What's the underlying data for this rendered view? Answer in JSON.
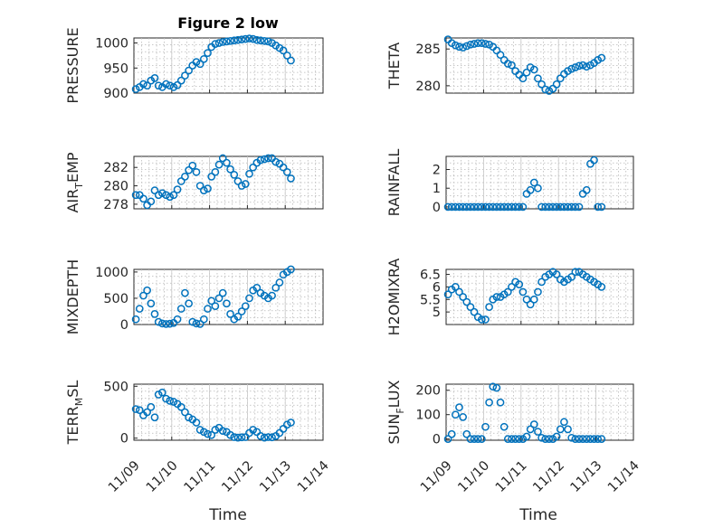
{
  "figure": {
    "title": "Figure 2 low",
    "time_ticks": [
      "11/09",
      "11/10",
      "11/11",
      "11/12",
      "11/13",
      "11/14"
    ],
    "xlabel": "Time",
    "marker_color": "#0072BD"
  },
  "chart_data": [
    {
      "type": "scatter",
      "ylabel": "PRESSURE",
      "ylim": [
        900,
        1010
      ],
      "yticks": [
        900,
        950,
        1000
      ],
      "x": [
        0.05,
        0.15,
        0.25,
        0.35,
        0.45,
        0.55,
        0.65,
        0.75,
        0.85,
        0.95,
        1.05,
        1.15,
        1.25,
        1.35,
        1.45,
        1.55,
        1.65,
        1.75,
        1.85,
        1.95,
        2.05,
        2.15,
        2.25,
        2.35,
        2.45,
        2.55,
        2.65,
        2.75,
        2.85,
        2.95,
        3.05,
        3.15,
        3.25,
        3.35,
        3.45,
        3.55,
        3.65,
        3.75,
        3.85,
        3.95,
        4.05,
        4.15
      ],
      "values": [
        908,
        912,
        918,
        915,
        925,
        930,
        915,
        912,
        918,
        915,
        912,
        916,
        925,
        935,
        945,
        955,
        962,
        958,
        968,
        980,
        992,
        998,
        1000,
        1002,
        1003,
        1004,
        1005,
        1006,
        1007,
        1008,
        1009,
        1008,
        1006,
        1005,
        1004,
        1003,
        1000,
        995,
        990,
        985,
        975,
        965
      ]
    },
    {
      "type": "scatter",
      "ylabel": "THETA",
      "ylim": [
        279,
        286.5
      ],
      "yticks": [
        280,
        285
      ],
      "x": [
        0.05,
        0.15,
        0.25,
        0.35,
        0.45,
        0.55,
        0.65,
        0.75,
        0.85,
        0.95,
        1.05,
        1.15,
        1.25,
        1.35,
        1.45,
        1.55,
        1.65,
        1.75,
        1.85,
        1.95,
        2.05,
        2.15,
        2.25,
        2.35,
        2.45,
        2.55,
        2.65,
        2.75,
        2.85,
        2.95,
        3.05,
        3.15,
        3.25,
        3.35,
        3.45,
        3.55,
        3.65,
        3.75,
        3.85,
        3.95,
        4.05,
        4.15
      ],
      "values": [
        286.3,
        285.8,
        285.5,
        285.3,
        285.2,
        285.4,
        285.6,
        285.7,
        285.8,
        285.8,
        285.7,
        285.6,
        285.3,
        284.8,
        284.2,
        283.5,
        283,
        282.8,
        282,
        281.5,
        281,
        281.8,
        282.5,
        282.2,
        281,
        280.2,
        279.5,
        279.3,
        279.6,
        280.2,
        281,
        281.6,
        282,
        282.3,
        282.5,
        282.7,
        282.8,
        282.6,
        282.8,
        283.1,
        283.5,
        283.8
      ]
    },
    {
      "type": "scatter",
      "ylabel": "AIR",
      "ylabel_sub": "T",
      "ylabel_tail": "EMP",
      "ylim": [
        277.5,
        283.2
      ],
      "yticks": [
        278,
        280,
        282
      ],
      "x": [
        0.05,
        0.15,
        0.25,
        0.35,
        0.45,
        0.55,
        0.65,
        0.75,
        0.85,
        0.95,
        1.05,
        1.15,
        1.25,
        1.35,
        1.45,
        1.55,
        1.65,
        1.75,
        1.85,
        1.95,
        2.05,
        2.15,
        2.25,
        2.35,
        2.45,
        2.55,
        2.65,
        2.75,
        2.85,
        2.95,
        3.05,
        3.15,
        3.25,
        3.35,
        3.45,
        3.55,
        3.65,
        3.75,
        3.85,
        3.95,
        4.05,
        4.15
      ],
      "values": [
        279,
        279,
        278.6,
        277.9,
        278.3,
        279.5,
        279,
        279.2,
        279,
        278.8,
        279,
        279.6,
        280.5,
        281,
        281.7,
        282.2,
        281.5,
        280,
        279.5,
        279.7,
        281,
        281.5,
        282.3,
        283,
        282.5,
        281.8,
        281.2,
        280.5,
        280,
        280.2,
        281.3,
        282,
        282.5,
        282.8,
        282.9,
        283,
        283,
        282.6,
        282.4,
        282,
        281.5,
        280.8
      ]
    },
    {
      "type": "scatter",
      "ylabel": "RAINFALL",
      "ylim": [
        -0.1,
        2.7
      ],
      "yticks": [
        0,
        1,
        2
      ],
      "x": [
        0.05,
        0.15,
        0.25,
        0.35,
        0.45,
        0.55,
        0.65,
        0.75,
        0.85,
        0.95,
        1.05,
        1.15,
        1.25,
        1.35,
        1.45,
        1.55,
        1.65,
        1.75,
        1.85,
        1.95,
        2.05,
        2.15,
        2.25,
        2.35,
        2.45,
        2.55,
        2.65,
        2.75,
        2.85,
        2.95,
        3.05,
        3.15,
        3.25,
        3.35,
        3.45,
        3.55,
        3.65,
        3.75,
        3.85,
        3.95,
        4.05,
        4.15
      ],
      "values": [
        0,
        0,
        0,
        0,
        0,
        0,
        0,
        0,
        0,
        0,
        0,
        0,
        0,
        0,
        0,
        0,
        0,
        0,
        0,
        0,
        0,
        0.7,
        0.9,
        1.3,
        1.0,
        0,
        0,
        0,
        0,
        0,
        0,
        0,
        0,
        0,
        0,
        0,
        0.7,
        0.9,
        2.3,
        2.5,
        0,
        0
      ]
    },
    {
      "type": "scatter",
      "ylabel": "MIXDEPTH",
      "ylim": [
        0,
        1050
      ],
      "yticks": [
        0,
        500,
        1000
      ],
      "x": [
        0.05,
        0.15,
        0.25,
        0.35,
        0.45,
        0.55,
        0.65,
        0.75,
        0.85,
        0.95,
        1.05,
        1.15,
        1.25,
        1.35,
        1.45,
        1.55,
        1.65,
        1.75,
        1.85,
        1.95,
        2.05,
        2.15,
        2.25,
        2.35,
        2.45,
        2.55,
        2.65,
        2.75,
        2.85,
        2.95,
        3.05,
        3.15,
        3.25,
        3.35,
        3.45,
        3.55,
        3.65,
        3.75,
        3.85,
        3.95,
        4.05,
        4.15
      ],
      "values": [
        100,
        300,
        550,
        650,
        400,
        200,
        50,
        20,
        10,
        15,
        30,
        100,
        300,
        600,
        400,
        50,
        20,
        10,
        100,
        300,
        450,
        350,
        500,
        600,
        400,
        200,
        100,
        150,
        250,
        350,
        500,
        650,
        700,
        600,
        550,
        500,
        550,
        700,
        800,
        950,
        1000,
        1050
      ]
    },
    {
      "type": "scatter",
      "ylabel": "H2OMIXRA",
      "ylim": [
        4.5,
        6.7
      ],
      "yticks": [
        5,
        5.5,
        6,
        6.5
      ],
      "x": [
        0.05,
        0.15,
        0.25,
        0.35,
        0.45,
        0.55,
        0.65,
        0.75,
        0.85,
        0.95,
        1.05,
        1.15,
        1.25,
        1.35,
        1.45,
        1.55,
        1.65,
        1.75,
        1.85,
        1.95,
        2.05,
        2.15,
        2.25,
        2.35,
        2.45,
        2.55,
        2.65,
        2.75,
        2.85,
        2.95,
        3.05,
        3.15,
        3.25,
        3.35,
        3.45,
        3.55,
        3.65,
        3.75,
        3.85,
        3.95,
        4.05,
        4.15
      ],
      "values": [
        5.7,
        5.9,
        6,
        5.8,
        5.6,
        5.4,
        5.2,
        5,
        4.8,
        4.7,
        4.7,
        5.2,
        5.5,
        5.6,
        5.6,
        5.7,
        5.8,
        6,
        6.2,
        6.1,
        5.8,
        5.5,
        5.3,
        5.5,
        5.8,
        6.2,
        6.4,
        6.5,
        6.6,
        6.5,
        6.3,
        6.2,
        6.3,
        6.4,
        6.6,
        6.6,
        6.5,
        6.4,
        6.3,
        6.2,
        6.1,
        6
      ]
    },
    {
      "type": "scatter",
      "ylabel": "TERR",
      "ylabel_sub": "M",
      "ylabel_tail": "SL",
      "ylim": [
        -20,
        520
      ],
      "yticks": [
        0,
        500
      ],
      "x": [
        0.05,
        0.15,
        0.25,
        0.35,
        0.45,
        0.55,
        0.65,
        0.75,
        0.85,
        0.95,
        1.05,
        1.15,
        1.25,
        1.35,
        1.45,
        1.55,
        1.65,
        1.75,
        1.85,
        1.95,
        2.05,
        2.15,
        2.25,
        2.35,
        2.45,
        2.55,
        2.65,
        2.75,
        2.85,
        2.95,
        3.05,
        3.15,
        3.25,
        3.35,
        3.45,
        3.55,
        3.65,
        3.75,
        3.85,
        3.95,
        4.05,
        4.15
      ],
      "values": [
        280,
        270,
        220,
        250,
        300,
        200,
        420,
        440,
        380,
        360,
        350,
        330,
        300,
        250,
        200,
        180,
        150,
        80,
        60,
        40,
        30,
        80,
        100,
        70,
        60,
        30,
        10,
        5,
        8,
        10,
        50,
        80,
        60,
        20,
        5,
        10,
        8,
        20,
        50,
        90,
        130,
        150
      ]
    },
    {
      "type": "scatter",
      "ylabel": "SUN",
      "ylabel_sub": "F",
      "ylabel_tail": "LUX",
      "ylim": [
        -5,
        225
      ],
      "yticks": [
        0,
        100,
        200
      ],
      "x": [
        0.05,
        0.15,
        0.25,
        0.35,
        0.45,
        0.55,
        0.65,
        0.75,
        0.85,
        0.95,
        1.05,
        1.15,
        1.25,
        1.35,
        1.45,
        1.55,
        1.65,
        1.75,
        1.85,
        1.95,
        2.05,
        2.15,
        2.25,
        2.35,
        2.45,
        2.55,
        2.65,
        2.75,
        2.85,
        2.95,
        3.05,
        3.15,
        3.25,
        3.35,
        3.45,
        3.55,
        3.65,
        3.75,
        3.85,
        3.95,
        4.05,
        4.15
      ],
      "values": [
        0,
        20,
        100,
        130,
        90,
        20,
        0,
        0,
        0,
        0,
        50,
        150,
        215,
        210,
        150,
        50,
        0,
        0,
        0,
        0,
        0,
        10,
        40,
        60,
        30,
        5,
        0,
        0,
        0,
        10,
        40,
        70,
        40,
        5,
        0,
        0,
        0,
        0,
        0,
        0,
        0,
        0
      ]
    }
  ]
}
